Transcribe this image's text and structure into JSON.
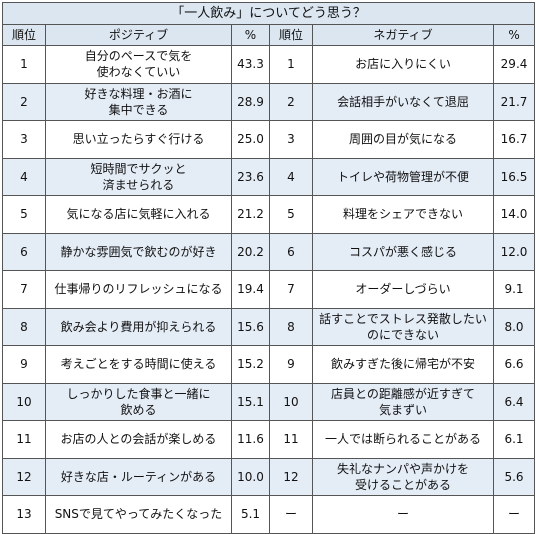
{
  "title": "「一人飲み」についてどう思う？",
  "headers": {
    "rank": "順位",
    "positive": "ポジティブ",
    "pct": "%",
    "rank2": "順位",
    "negative": "ネガティブ",
    "pct2": "%"
  },
  "rows": [
    {
      "rank": "1",
      "pos": "自分のペースで気を\n使わなくていい",
      "pos_pct": "43.3",
      "rank2": "1",
      "neg": "お店に入りにくい",
      "neg_pct": "29.4"
    },
    {
      "rank": "2",
      "pos": "好きな料理・お酒に\n集中できる",
      "pos_pct": "28.9",
      "rank2": "2",
      "neg": "会話相手がいなくて退屈",
      "neg_pct": "21.7"
    },
    {
      "rank": "3",
      "pos": "思い立ったらすぐ行ける",
      "pos_pct": "25.0",
      "rank2": "3",
      "neg": "周囲の目が気になる",
      "neg_pct": "16.7"
    },
    {
      "rank": "4",
      "pos": "短時間でサクッと\n済ませられる",
      "pos_pct": "23.6",
      "rank2": "4",
      "neg": "トイレや荷物管理が不便",
      "neg_pct": "16.5"
    },
    {
      "rank": "5",
      "pos": "気になる店に気軽に入れる",
      "pos_pct": "21.2",
      "rank2": "5",
      "neg": "料理をシェアできない",
      "neg_pct": "14.0"
    },
    {
      "rank": "6",
      "pos": "静かな雰囲気で飲むのが好き",
      "pos_pct": "20.2",
      "rank2": "6",
      "neg": "コスパが悪く感じる",
      "neg_pct": "12.0"
    },
    {
      "rank": "7",
      "pos": "仕事帰りのリフレッシュになる",
      "pos_pct": "19.4",
      "rank2": "7",
      "neg": "オーダーしづらい",
      "neg_pct": "9.1"
    },
    {
      "rank": "8",
      "pos": "飲み会より費用が抑えられる",
      "pos_pct": "15.6",
      "rank2": "8",
      "neg": "話すことでストレス発散したい\nのにできない",
      "neg_pct": "8.0"
    },
    {
      "rank": "9",
      "pos": "考えごとをする時間に使える",
      "pos_pct": "15.2",
      "rank2": "9",
      "neg": "飲みすぎた後に帰宅が不安",
      "neg_pct": "6.6"
    },
    {
      "rank": "10",
      "pos": "しっかりした食事と一緒に\n飲める",
      "pos_pct": "15.1",
      "rank2": "10",
      "neg": "店員との距離感が近すぎて\n気まずい",
      "neg_pct": "6.4"
    },
    {
      "rank": "11",
      "pos": "お店の人との会話が楽しめる",
      "pos_pct": "11.6",
      "rank2": "11",
      "neg": "一人では断られることがある",
      "neg_pct": "6.1"
    },
    {
      "rank": "12",
      "pos": "好きな店・ルーティンがある",
      "pos_pct": "10.0",
      "rank2": "12",
      "neg": "失礼なナンパや声かけを\n受けることがある",
      "neg_pct": "5.6"
    },
    {
      "rank": "13",
      "pos": "SNSで見てやってみたくなった",
      "pos_pct": "5.1",
      "rank2": "ー",
      "neg": "ー",
      "neg_pct": "ー"
    }
  ]
}
